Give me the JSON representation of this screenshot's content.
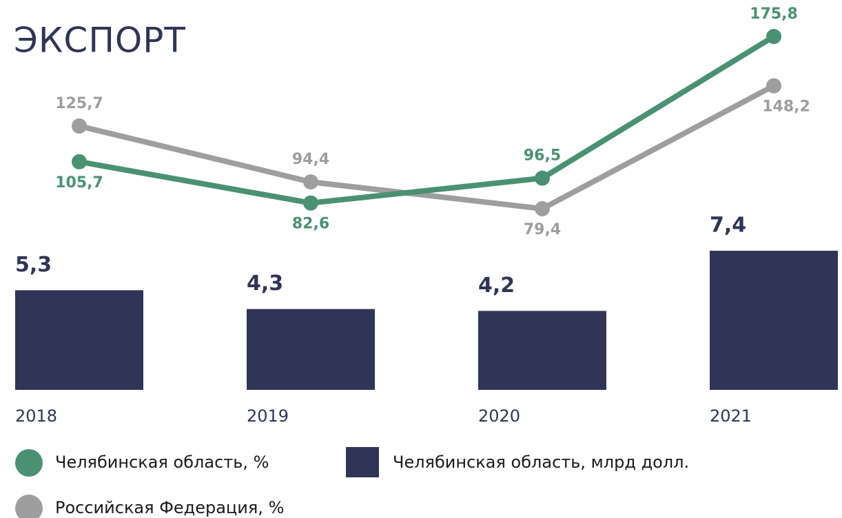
{
  "chart_data": {
    "type": "combo",
    "title": "ЭКСПОРТ",
    "categories": [
      "2018",
      "2019",
      "2020",
      "2021"
    ],
    "series": [
      {
        "name": "Челябинская область, %",
        "type": "line",
        "color": "#4a9172",
        "values": [
          105.7,
          82.6,
          96.5,
          175.8
        ],
        "value_labels": [
          "105,7",
          "82,6",
          "96,5",
          "175,8"
        ]
      },
      {
        "name": "Челябинская область, млрд долл.",
        "type": "bar",
        "color": "#303558",
        "values": [
          5.3,
          4.3,
          4.2,
          7.4
        ],
        "value_labels": [
          "5,3",
          "4,3",
          "4,2",
          "7,4"
        ]
      },
      {
        "name": "Российская Федерация, %",
        "type": "line",
        "color": "#9e9e9e",
        "values": [
          125.7,
          94.4,
          79.4,
          148.2
        ],
        "value_labels": [
          "125,7",
          "94,4",
          "79,4",
          "148,2"
        ]
      }
    ]
  }
}
